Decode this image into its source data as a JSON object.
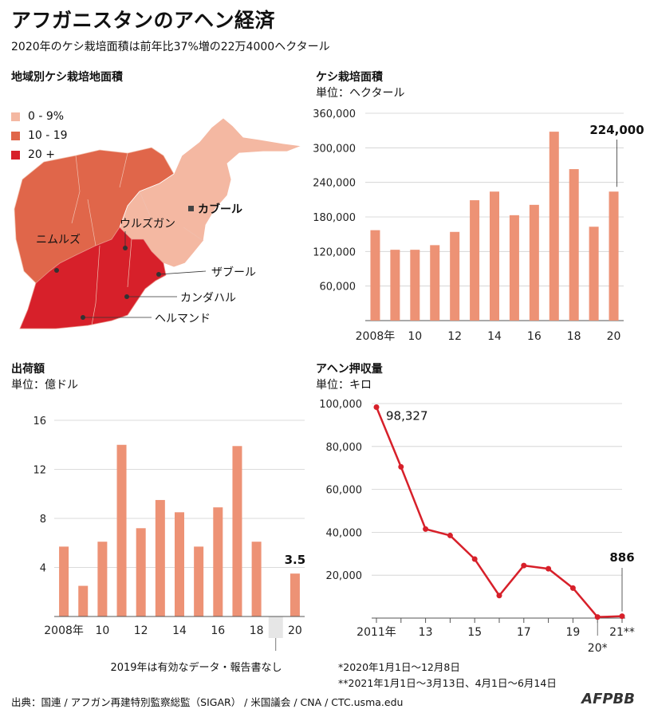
{
  "header": {
    "title": "アフガニスタンのアヘン経済",
    "subtitle": "2020年のケシ栽培面積は前年比37%増の22万4000ヘクタール"
  },
  "map": {
    "title": "地域別ケシ栽培地面積",
    "legend": [
      {
        "label": "0 - 9%",
        "color": "#f4b8a2"
      },
      {
        "label": "10 - 19",
        "color": "#e0664a"
      },
      {
        "label": "20 +",
        "color": "#d7202a"
      }
    ],
    "labels": {
      "kabul": "カブール",
      "uruzgan": "ウルズガン",
      "nimruz": "ニムルズ",
      "zabul": "ザブール",
      "kandahar": "カンダハル",
      "helmand": "ヘルマンド"
    }
  },
  "chart_data": [
    {
      "type": "bar",
      "title": "ケシ栽培面積",
      "ylabel": "単位：ヘクタール",
      "categories": [
        "2008年",
        "09",
        "10",
        "11",
        "12",
        "13",
        "14",
        "15",
        "16",
        "17",
        "18",
        "19",
        "20"
      ],
      "tick_labels": [
        "2008年",
        "10",
        "12",
        "14",
        "16",
        "18",
        "20"
      ],
      "yticks": [
        "60,000",
        "120,000",
        "180,000",
        "240,000",
        "300,000",
        "360,000"
      ],
      "values": [
        157000,
        123000,
        123000,
        131000,
        154000,
        209000,
        224000,
        183000,
        201000,
        328000,
        263000,
        163000,
        224000
      ],
      "ylim": [
        0,
        360000
      ],
      "annotation": "224,000",
      "color": "#ed9275"
    },
    {
      "type": "bar",
      "title": "出荷額",
      "ylabel": "単位：億ドル",
      "categories": [
        "2008年",
        "09",
        "10",
        "11",
        "12",
        "13",
        "14",
        "15",
        "16",
        "17",
        "18",
        "19",
        "20"
      ],
      "tick_labels": [
        "2008年",
        "10",
        "12",
        "14",
        "16",
        "18",
        "20"
      ],
      "yticks": [
        "4",
        "8",
        "12",
        "16"
      ],
      "values": [
        5.7,
        2.5,
        6.1,
        14.0,
        7.2,
        9.5,
        8.5,
        5.7,
        8.9,
        13.9,
        6.1,
        null,
        3.5
      ],
      "ylim": [
        0,
        16
      ],
      "annotation": "3.5",
      "note": "2019年は有効なデータ・報告書なし",
      "color": "#ed9275"
    },
    {
      "type": "line",
      "title": "アヘン押収量",
      "ylabel": "単位：キロ",
      "categories": [
        "2011年",
        "12",
        "13",
        "14",
        "15",
        "16",
        "17",
        "18",
        "19",
        "20*",
        "21**"
      ],
      "tick_labels": [
        "2011年",
        "13",
        "15",
        "17",
        "19",
        "21**"
      ],
      "bottom_label": "20*",
      "yticks": [
        "20,000",
        "40,000",
        "60,000",
        "80,000",
        "100,000"
      ],
      "values": [
        98327,
        70500,
        41500,
        38500,
        27500,
        10500,
        24500,
        23000,
        14000,
        500,
        886
      ],
      "ylim": [
        0,
        100000
      ],
      "annotations": [
        "98,327",
        "886"
      ],
      "color": "#d7202a",
      "footnotes": [
        "*2020年1月1日～12月8日",
        "**2021年1月1日～3月13日、4月1日～6月14日"
      ]
    }
  ],
  "footer": {
    "source": "出典：国連 / アフガン再建特別監察総監（SIGAR） / 米国議会 / CNA / CTC.usma.edu",
    "logo": "AFPBB"
  }
}
